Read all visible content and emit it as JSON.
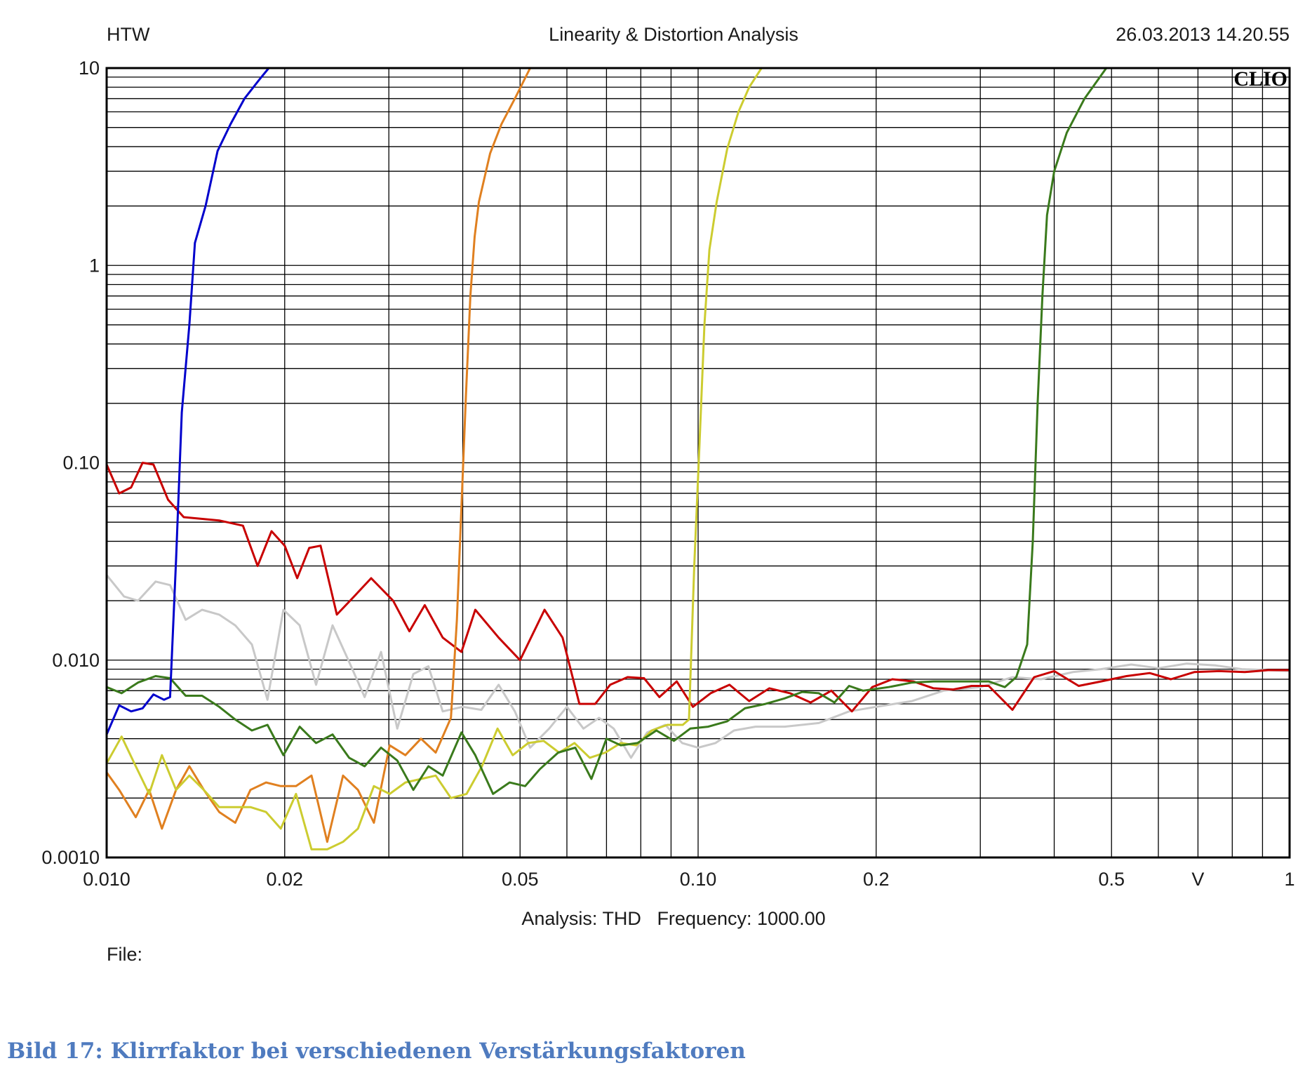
{
  "header": {
    "left": "HTW",
    "title": "Linearity & Distortion Analysis",
    "timestamp": "26.03.2013 14.20.55"
  },
  "logo_text": "CLIO",
  "footer": {
    "analysis": "Analysis: THD   Frequency: 1000.00",
    "file": "File:"
  },
  "caption": "Bild 17: Klirrfaktor bei verschiedenen Verstärkungsfaktoren",
  "chart_data": {
    "type": "line",
    "x_scale": "log",
    "y_scale": "log",
    "xlim": [
      0.01,
      1
    ],
    "ylim": [
      0.001,
      10
    ],
    "grid": true,
    "x_ticks": [
      {
        "value": 0.01,
        "label": "0.010"
      },
      {
        "value": 0.02,
        "label": "0.02"
      },
      {
        "value": 0.05,
        "label": "0.05"
      },
      {
        "value": 0.1,
        "label": "0.10"
      },
      {
        "value": 0.2,
        "label": "0.2"
      },
      {
        "value": 0.5,
        "label": "0.5"
      },
      {
        "value": 1,
        "label": "1"
      }
    ],
    "x_unit": "V",
    "y_ticks": [
      {
        "value": 10,
        "label": "10"
      },
      {
        "value": 1,
        "label": "1"
      },
      {
        "value": 0.1,
        "label": "0.10"
      },
      {
        "value": 0.01,
        "label": "0.010"
      },
      {
        "value": 0.001,
        "label": "0.0010"
      }
    ],
    "series": [
      {
        "color": "#c8c8c8",
        "points": [
          [
            0.01,
            0.027
          ],
          [
            0.0107,
            0.021
          ],
          [
            0.0113,
            0.02
          ],
          [
            0.0121,
            0.025
          ],
          [
            0.0128,
            0.024
          ],
          [
            0.0136,
            0.016
          ],
          [
            0.0145,
            0.018
          ],
          [
            0.0155,
            0.017
          ],
          [
            0.0165,
            0.015
          ],
          [
            0.0176,
            0.012
          ],
          [
            0.0187,
            0.0063
          ],
          [
            0.0199,
            0.018
          ],
          [
            0.0212,
            0.015
          ],
          [
            0.0226,
            0.0075
          ],
          [
            0.0241,
            0.015
          ],
          [
            0.0257,
            0.0098
          ],
          [
            0.0273,
            0.0065
          ],
          [
            0.0291,
            0.011
          ],
          [
            0.031,
            0.0045
          ],
          [
            0.033,
            0.0085
          ],
          [
            0.035,
            0.0093
          ],
          [
            0.037,
            0.0055
          ],
          [
            0.04,
            0.0058
          ],
          [
            0.043,
            0.0056
          ],
          [
            0.046,
            0.0075
          ],
          [
            0.049,
            0.0055
          ],
          [
            0.052,
            0.0036
          ],
          [
            0.056,
            0.0045
          ],
          [
            0.06,
            0.0058
          ],
          [
            0.064,
            0.0045
          ],
          [
            0.068,
            0.0051
          ],
          [
            0.072,
            0.0045
          ],
          [
            0.077,
            0.0032
          ],
          [
            0.082,
            0.0043
          ],
          [
            0.088,
            0.0047
          ],
          [
            0.094,
            0.0038
          ],
          [
            0.1,
            0.0036
          ],
          [
            0.107,
            0.0038
          ],
          [
            0.115,
            0.0044
          ],
          [
            0.125,
            0.0046
          ],
          [
            0.14,
            0.0046
          ],
          [
            0.16,
            0.0048
          ],
          [
            0.18,
            0.0055
          ],
          [
            0.2,
            0.0058
          ],
          [
            0.23,
            0.0062
          ],
          [
            0.26,
            0.007
          ],
          [
            0.3,
            0.0073
          ],
          [
            0.34,
            0.0082
          ],
          [
            0.38,
            0.008
          ],
          [
            0.43,
            0.0087
          ],
          [
            0.48,
            0.009
          ],
          [
            0.54,
            0.0095
          ],
          [
            0.6,
            0.0091
          ],
          [
            0.67,
            0.0096
          ],
          [
            0.75,
            0.0094
          ],
          [
            0.83,
            0.009
          ],
          [
            0.92,
            0.0089
          ],
          [
            1.0,
            0.0088
          ]
        ]
      },
      {
        "color": "#c80000",
        "points": [
          [
            0.01,
            0.098
          ],
          [
            0.0105,
            0.07
          ],
          [
            0.011,
            0.075
          ],
          [
            0.0115,
            0.1
          ],
          [
            0.012,
            0.098
          ],
          [
            0.0127,
            0.065
          ],
          [
            0.0135,
            0.053
          ],
          [
            0.0155,
            0.051
          ],
          [
            0.017,
            0.048
          ],
          [
            0.018,
            0.03
          ],
          [
            0.019,
            0.045
          ],
          [
            0.02,
            0.038
          ],
          [
            0.021,
            0.026
          ],
          [
            0.022,
            0.037
          ],
          [
            0.023,
            0.038
          ],
          [
            0.0245,
            0.017
          ],
          [
            0.0262,
            0.021
          ],
          [
            0.028,
            0.026
          ],
          [
            0.0305,
            0.02
          ],
          [
            0.0325,
            0.014
          ],
          [
            0.0345,
            0.019
          ],
          [
            0.037,
            0.013
          ],
          [
            0.0398,
            0.011
          ],
          [
            0.042,
            0.018
          ],
          [
            0.046,
            0.013
          ],
          [
            0.05,
            0.01
          ],
          [
            0.055,
            0.018
          ],
          [
            0.059,
            0.013
          ],
          [
            0.063,
            0.006
          ],
          [
            0.067,
            0.006
          ],
          [
            0.071,
            0.0075
          ],
          [
            0.076,
            0.0082
          ],
          [
            0.081,
            0.0081
          ],
          [
            0.086,
            0.0065
          ],
          [
            0.092,
            0.0078
          ],
          [
            0.098,
            0.0058
          ],
          [
            0.105,
            0.0068
          ],
          [
            0.113,
            0.0075
          ],
          [
            0.122,
            0.0062
          ],
          [
            0.132,
            0.0072
          ],
          [
            0.143,
            0.0068
          ],
          [
            0.155,
            0.0061
          ],
          [
            0.168,
            0.007
          ],
          [
            0.182,
            0.0055
          ],
          [
            0.197,
            0.0073
          ],
          [
            0.213,
            0.008
          ],
          [
            0.231,
            0.0078
          ],
          [
            0.25,
            0.0072
          ],
          [
            0.27,
            0.0071
          ],
          [
            0.29,
            0.0074
          ],
          [
            0.31,
            0.0074
          ],
          [
            0.34,
            0.0056
          ],
          [
            0.37,
            0.0082
          ],
          [
            0.4,
            0.0088
          ],
          [
            0.44,
            0.0074
          ],
          [
            0.48,
            0.0078
          ],
          [
            0.53,
            0.0083
          ],
          [
            0.58,
            0.0086
          ],
          [
            0.63,
            0.008
          ],
          [
            0.69,
            0.0087
          ],
          [
            0.76,
            0.0088
          ],
          [
            0.84,
            0.0087
          ],
          [
            0.92,
            0.0089
          ],
          [
            1.0,
            0.0089
          ]
        ]
      },
      {
        "color": "#e08020",
        "points": [
          [
            0.01,
            0.0027
          ],
          [
            0.0105,
            0.0022
          ],
          [
            0.0112,
            0.0016
          ],
          [
            0.0118,
            0.0022
          ],
          [
            0.0124,
            0.0014
          ],
          [
            0.0131,
            0.0022
          ],
          [
            0.0138,
            0.0029
          ],
          [
            0.0146,
            0.0022
          ],
          [
            0.0155,
            0.0017
          ],
          [
            0.0165,
            0.0015
          ],
          [
            0.0175,
            0.0022
          ],
          [
            0.0186,
            0.0024
          ],
          [
            0.0197,
            0.0023
          ],
          [
            0.0209,
            0.0023
          ],
          [
            0.0222,
            0.0026
          ],
          [
            0.0236,
            0.0012
          ],
          [
            0.0251,
            0.0026
          ],
          [
            0.0266,
            0.0022
          ],
          [
            0.0283,
            0.0015
          ],
          [
            0.0301,
            0.0037
          ],
          [
            0.032,
            0.0033
          ],
          [
            0.034,
            0.004
          ],
          [
            0.036,
            0.0034
          ],
          [
            0.0382,
            0.0051
          ],
          [
            0.0391,
            0.016
          ],
          [
            0.0398,
            0.06
          ],
          [
            0.0405,
            0.22
          ],
          [
            0.0412,
            0.7
          ],
          [
            0.0419,
            1.4
          ],
          [
            0.0426,
            2.1
          ],
          [
            0.0445,
            3.7
          ],
          [
            0.0465,
            5.2
          ],
          [
            0.049,
            7.0
          ],
          [
            0.052,
            10.0
          ]
        ]
      },
      {
        "color": "#cccc30",
        "points": [
          [
            0.01,
            0.003
          ],
          [
            0.0106,
            0.0041
          ],
          [
            0.0112,
            0.0029
          ],
          [
            0.0118,
            0.0021
          ],
          [
            0.0124,
            0.0033
          ],
          [
            0.0131,
            0.0022
          ],
          [
            0.0138,
            0.0026
          ],
          [
            0.0146,
            0.0022
          ],
          [
            0.0155,
            0.0018
          ],
          [
            0.0165,
            0.0018
          ],
          [
            0.0175,
            0.0018
          ],
          [
            0.0186,
            0.0017
          ],
          [
            0.0197,
            0.0014
          ],
          [
            0.0209,
            0.0021
          ],
          [
            0.0222,
            0.0011
          ],
          [
            0.0236,
            0.0011
          ],
          [
            0.0251,
            0.0012
          ],
          [
            0.0266,
            0.0014
          ],
          [
            0.0283,
            0.0023
          ],
          [
            0.0301,
            0.0021
          ],
          [
            0.032,
            0.0024
          ],
          [
            0.034,
            0.0025
          ],
          [
            0.036,
            0.0026
          ],
          [
            0.0382,
            0.002
          ],
          [
            0.0406,
            0.0021
          ],
          [
            0.0431,
            0.0029
          ],
          [
            0.0458,
            0.0045
          ],
          [
            0.0486,
            0.0033
          ],
          [
            0.0516,
            0.0038
          ],
          [
            0.0548,
            0.0039
          ],
          [
            0.0582,
            0.0034
          ],
          [
            0.0618,
            0.0038
          ],
          [
            0.0656,
            0.0032
          ],
          [
            0.0697,
            0.0034
          ],
          [
            0.074,
            0.0038
          ],
          [
            0.0786,
            0.0037
          ],
          [
            0.0835,
            0.0044
          ],
          [
            0.0887,
            0.0047
          ],
          [
            0.0942,
            0.0047
          ],
          [
            0.0965,
            0.005
          ],
          [
            0.0985,
            0.03
          ],
          [
            0.1005,
            0.12
          ],
          [
            0.1025,
            0.5
          ],
          [
            0.1045,
            1.2
          ],
          [
            0.1075,
            2.1
          ],
          [
            0.112,
            3.9
          ],
          [
            0.117,
            6.0
          ],
          [
            0.122,
            8.0
          ],
          [
            0.128,
            10.0
          ]
        ]
      },
      {
        "color": "#3a7a1c",
        "points": [
          [
            0.01,
            0.0073
          ],
          [
            0.0106,
            0.0068
          ],
          [
            0.0113,
            0.0077
          ],
          [
            0.0121,
            0.0083
          ],
          [
            0.0128,
            0.0081
          ],
          [
            0.0136,
            0.0066
          ],
          [
            0.0145,
            0.0066
          ],
          [
            0.0155,
            0.0058
          ],
          [
            0.0165,
            0.005
          ],
          [
            0.0176,
            0.0044
          ],
          [
            0.0187,
            0.0047
          ],
          [
            0.0199,
            0.0033
          ],
          [
            0.0212,
            0.0046
          ],
          [
            0.0226,
            0.0038
          ],
          [
            0.0241,
            0.0042
          ],
          [
            0.0257,
            0.0032
          ],
          [
            0.0273,
            0.0029
          ],
          [
            0.0291,
            0.0036
          ],
          [
            0.031,
            0.0031
          ],
          [
            0.033,
            0.0022
          ],
          [
            0.035,
            0.0029
          ],
          [
            0.037,
            0.0026
          ],
          [
            0.0398,
            0.0043
          ],
          [
            0.042,
            0.0033
          ],
          [
            0.045,
            0.0021
          ],
          [
            0.048,
            0.0024
          ],
          [
            0.051,
            0.0023
          ],
          [
            0.054,
            0.0028
          ],
          [
            0.058,
            0.0034
          ],
          [
            0.062,
            0.0036
          ],
          [
            0.066,
            0.0025
          ],
          [
            0.07,
            0.004
          ],
          [
            0.074,
            0.0037
          ],
          [
            0.079,
            0.0038
          ],
          [
            0.085,
            0.0044
          ],
          [
            0.091,
            0.0039
          ],
          [
            0.097,
            0.0045
          ],
          [
            0.104,
            0.0046
          ],
          [
            0.112,
            0.0049
          ],
          [
            0.12,
            0.0057
          ],
          [
            0.13,
            0.006
          ],
          [
            0.14,
            0.0064
          ],
          [
            0.15,
            0.0069
          ],
          [
            0.16,
            0.0068
          ],
          [
            0.17,
            0.0061
          ],
          [
            0.18,
            0.0074
          ],
          [
            0.19,
            0.007
          ],
          [
            0.21,
            0.0073
          ],
          [
            0.23,
            0.0077
          ],
          [
            0.25,
            0.0078
          ],
          [
            0.28,
            0.0078
          ],
          [
            0.31,
            0.0078
          ],
          [
            0.33,
            0.0073
          ],
          [
            0.345,
            0.0082
          ],
          [
            0.36,
            0.012
          ],
          [
            0.368,
            0.04
          ],
          [
            0.375,
            0.2
          ],
          [
            0.382,
            0.7
          ],
          [
            0.389,
            1.8
          ],
          [
            0.4,
            3.0
          ],
          [
            0.42,
            4.7
          ],
          [
            0.45,
            7.0
          ],
          [
            0.49,
            10.0
          ]
        ]
      },
      {
        "color": "#0000cc",
        "points": [
          [
            0.01,
            0.0042
          ],
          [
            0.0105,
            0.0059
          ],
          [
            0.011,
            0.0055
          ],
          [
            0.0115,
            0.0057
          ],
          [
            0.012,
            0.0067
          ],
          [
            0.0125,
            0.0063
          ],
          [
            0.0128,
            0.0065
          ],
          [
            0.0131,
            0.032
          ],
          [
            0.0134,
            0.18
          ],
          [
            0.0138,
            0.5
          ],
          [
            0.0141,
            1.3
          ],
          [
            0.0147,
            2.0
          ],
          [
            0.0154,
            3.8
          ],
          [
            0.0162,
            5.2
          ],
          [
            0.0171,
            7.0
          ],
          [
            0.0181,
            8.7
          ],
          [
            0.0188,
            10.0
          ]
        ]
      }
    ]
  }
}
